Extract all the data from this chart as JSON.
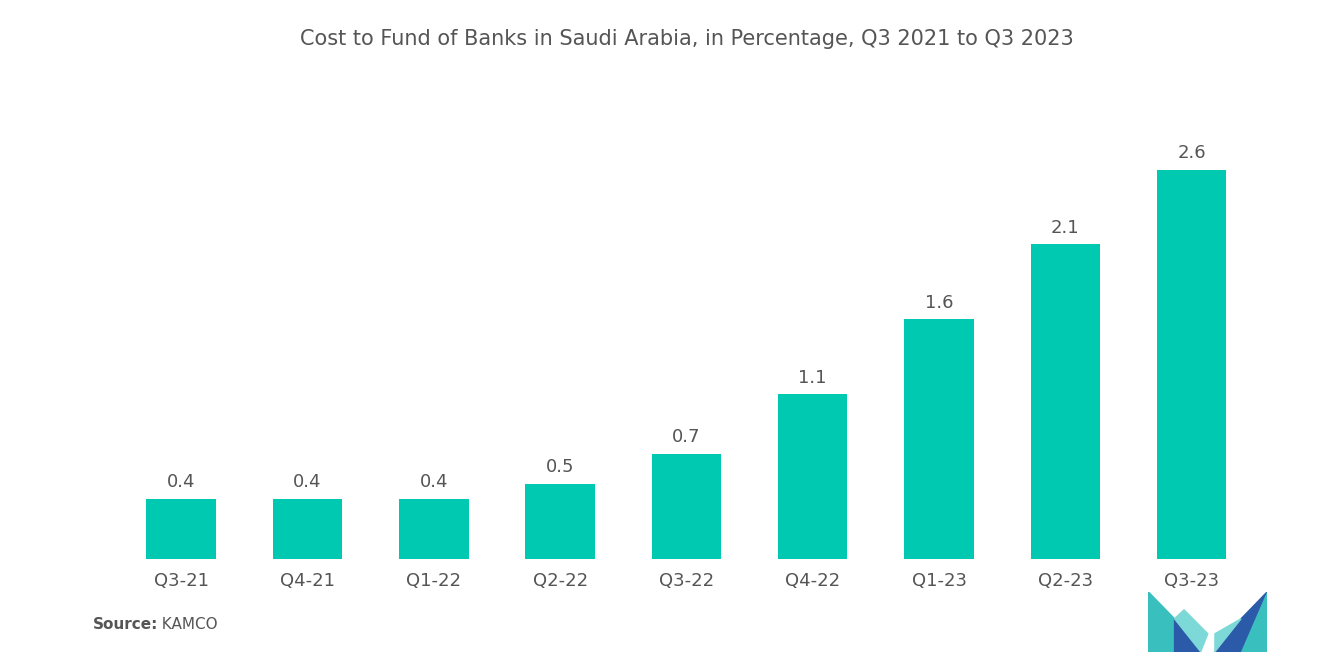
{
  "title": "Cost to Fund of Banks in Saudi Arabia, in Percentage, Q3 2021 to Q3 2023",
  "categories": [
    "Q3-21",
    "Q4-21",
    "Q1-22",
    "Q2-22",
    "Q3-22",
    "Q4-22",
    "Q1-23",
    "Q2-23",
    "Q3-23"
  ],
  "values": [
    0.4,
    0.4,
    0.4,
    0.5,
    0.7,
    1.1,
    1.6,
    2.1,
    2.6
  ],
  "bar_color": "#00C9B1",
  "background_color": "#ffffff",
  "title_fontsize": 15,
  "label_fontsize": 13,
  "tick_fontsize": 13,
  "source_bold": "Source:",
  "source_normal": "  KAMCO",
  "ylim": [
    0,
    3.2
  ],
  "bar_width": 0.55
}
